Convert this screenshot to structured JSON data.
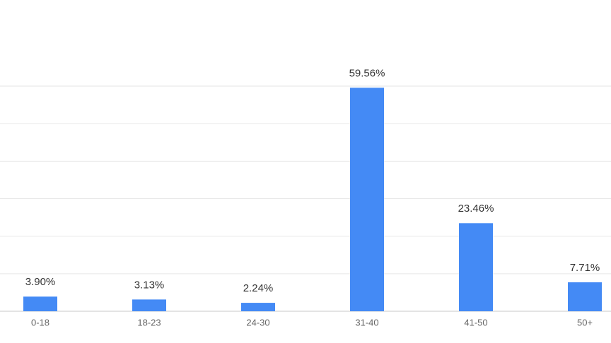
{
  "chart_data": {
    "type": "bar",
    "categories": [
      "0-18",
      "18-23",
      "24-30",
      "31-40",
      "41-50",
      "50+"
    ],
    "values": [
      3.9,
      3.13,
      2.24,
      59.56,
      23.46,
      7.71
    ],
    "value_labels": [
      "3.90%",
      "3.13%",
      "2.24%",
      "59.56%",
      "23.46%",
      "7.71%"
    ],
    "color": "#448af5",
    "ylim": [
      0,
      60
    ],
    "yticks": [
      0,
      10,
      20,
      30,
      40,
      50,
      60
    ],
    "grid": true
  }
}
